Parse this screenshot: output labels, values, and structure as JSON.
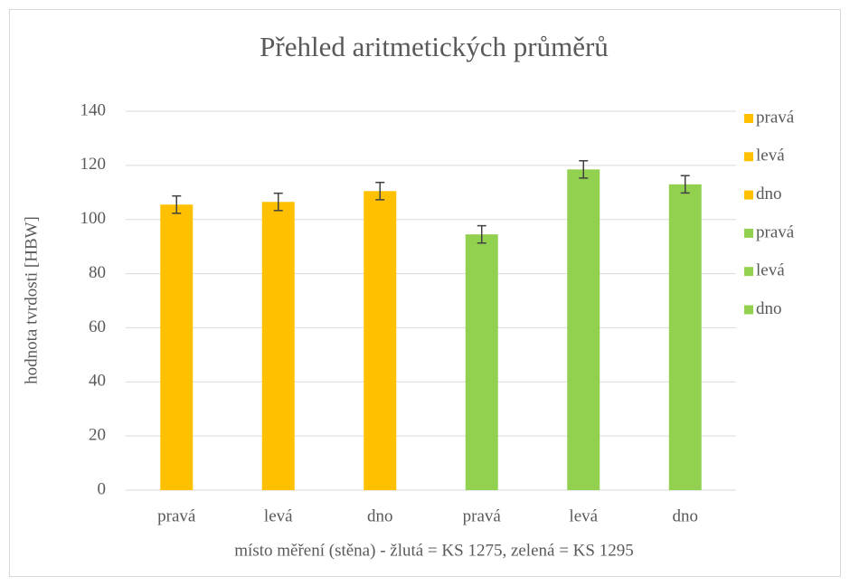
{
  "chart_data": {
    "type": "bar",
    "title": "Přehled aritmetických průměrů",
    "xlabel": "místo měření (stěna) - žlutá = KS 1275, zelená = KS 1295",
    "ylabel": "hodnota tvrdosti [HBW]",
    "categories": [
      "pravá",
      "levá",
      "dno",
      "pravá",
      "levá",
      "dno"
    ],
    "values": [
      105.5,
      106.5,
      110.5,
      94.5,
      118.5,
      113
    ],
    "errors": [
      3.2,
      3.2,
      3.2,
      3.2,
      3.2,
      3.2
    ],
    "colors": [
      "#ffc000",
      "#ffc000",
      "#ffc000",
      "#92d050",
      "#92d050",
      "#92d050"
    ],
    "ylim": [
      0,
      140
    ],
    "yticks": [
      0,
      20,
      40,
      60,
      80,
      100,
      120,
      140
    ],
    "grid": true,
    "legend": "right"
  }
}
